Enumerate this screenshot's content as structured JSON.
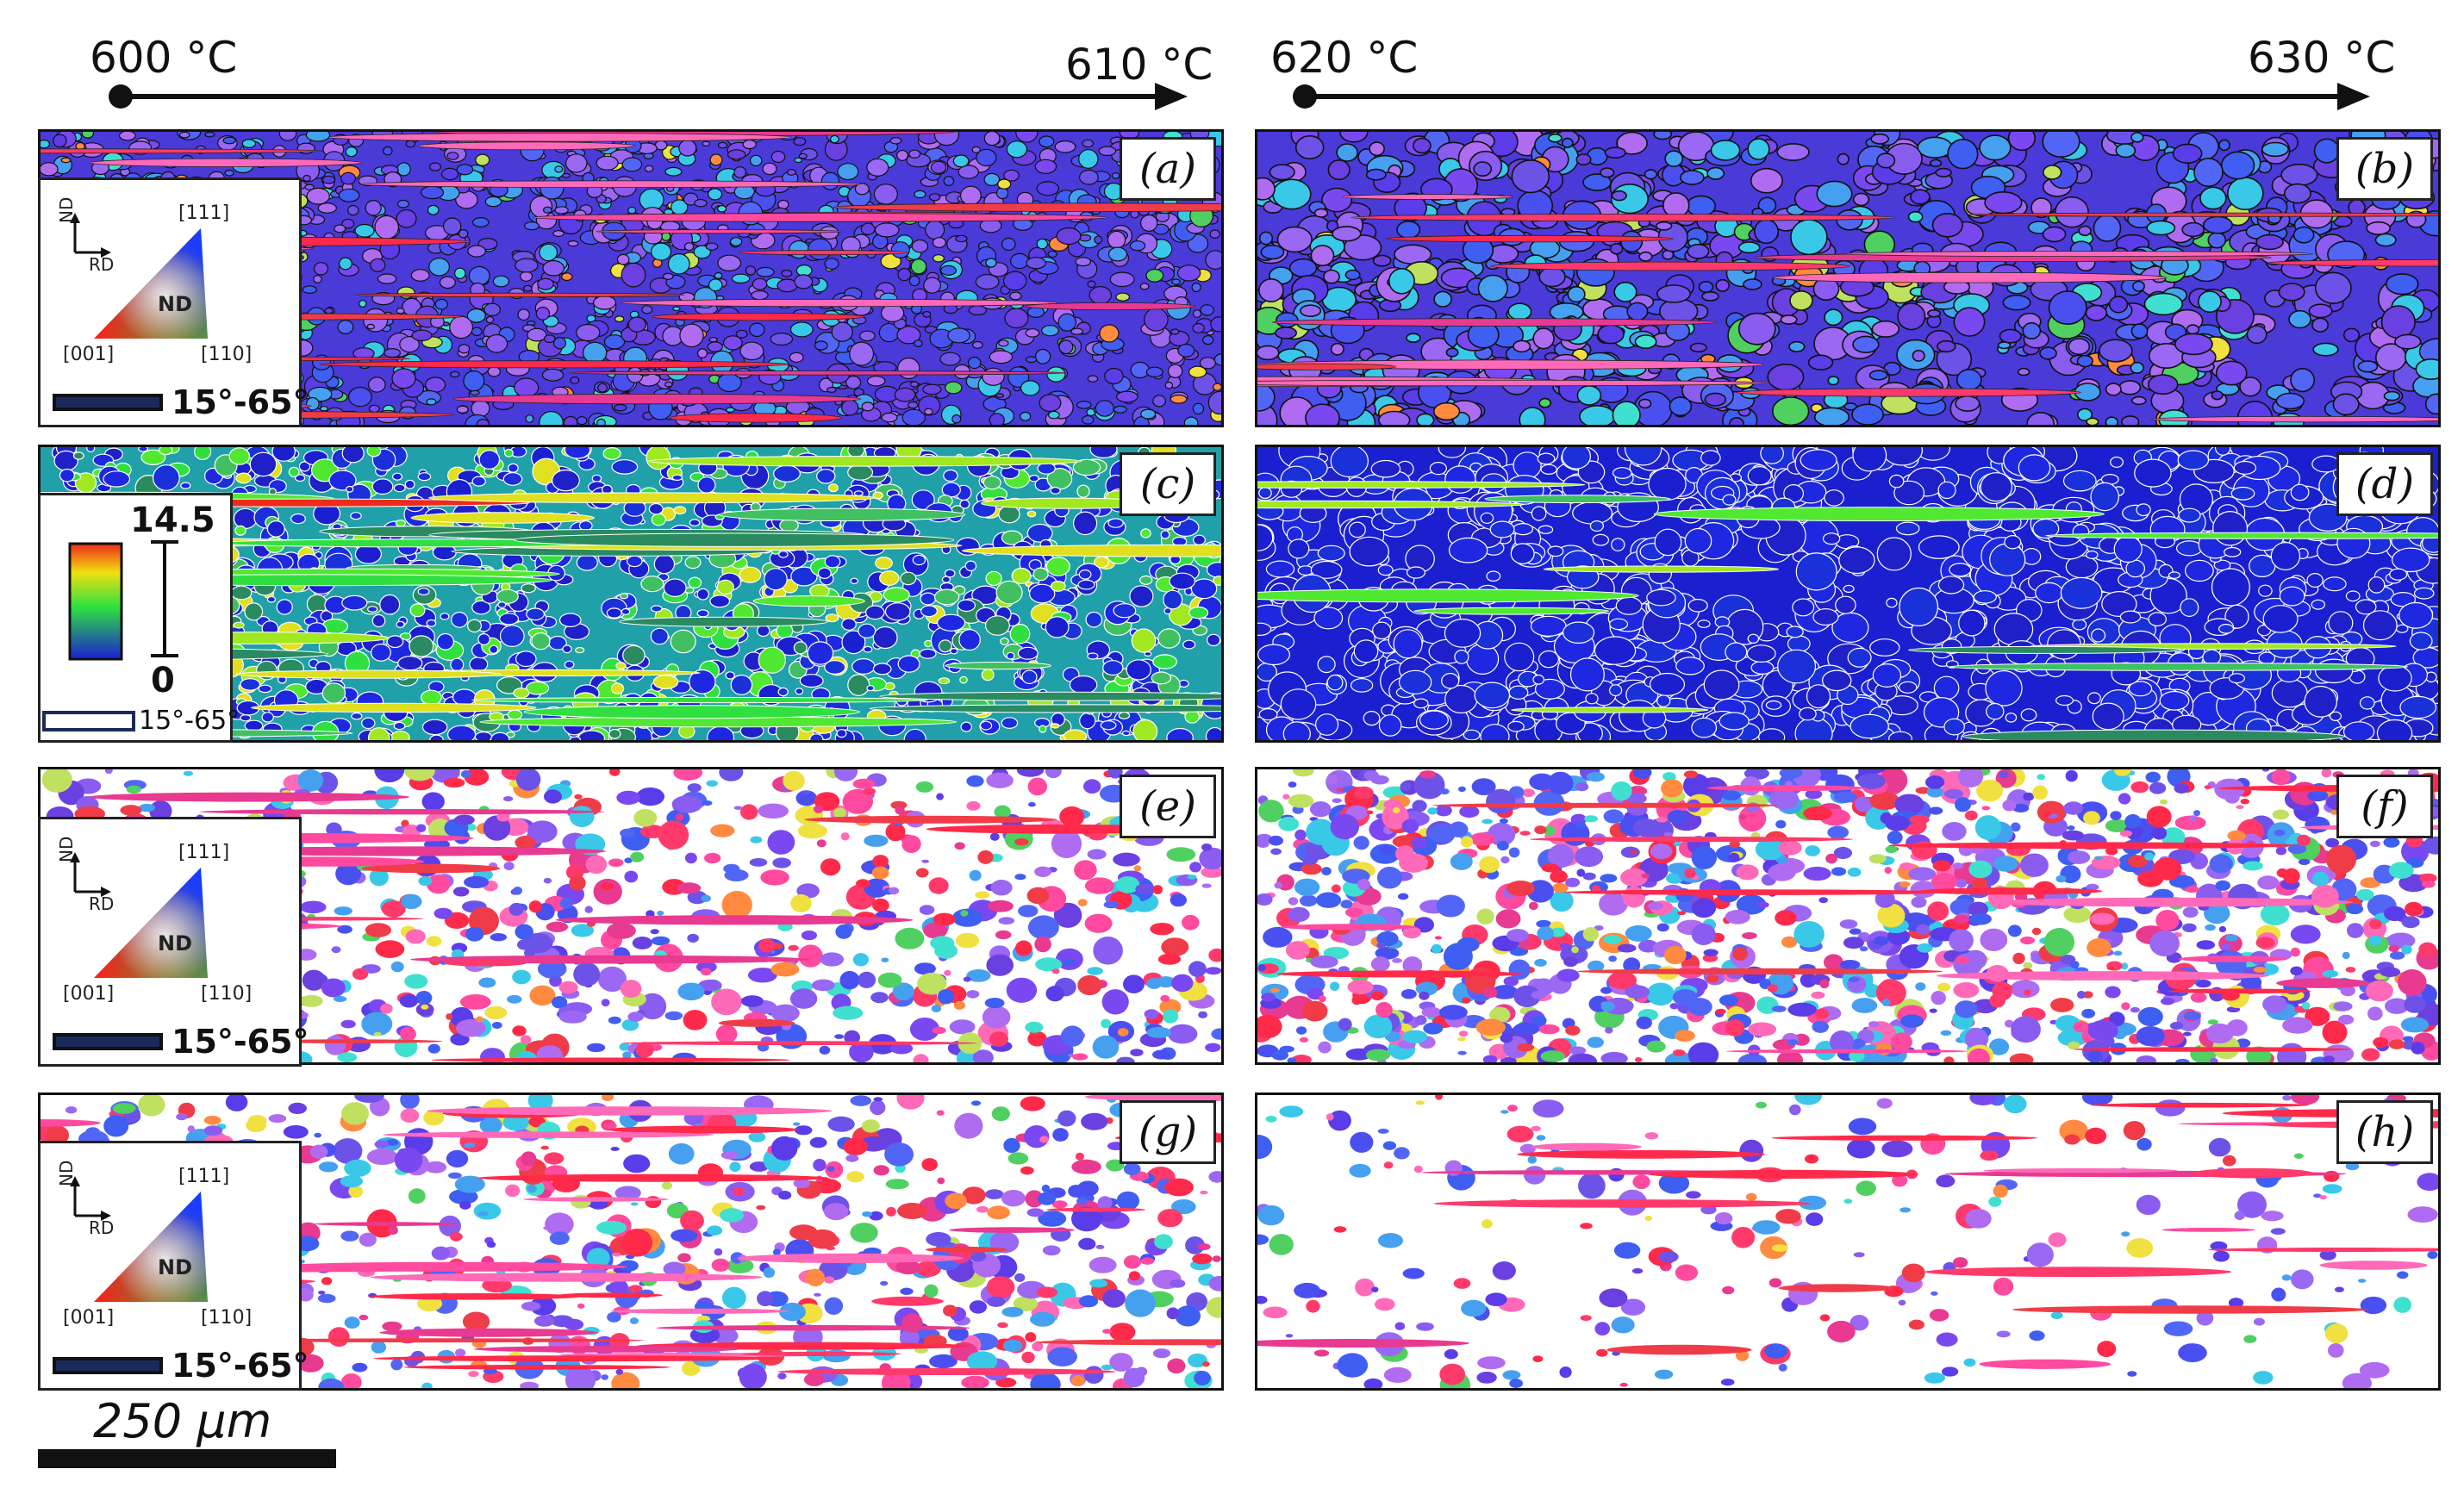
{
  "colors": {
    "axis": "#111111",
    "kam_low": "#1e20d2",
    "kam_mid": "#35e24a",
    "kam_high": "#ee2a1a",
    "boundary_white": "#ffffff",
    "boundary_black": "#111111"
  },
  "temperature_axes": [
    {
      "start": "600 °C",
      "end": "610 °C"
    },
    {
      "start": "620 °C",
      "end": "630 °C"
    }
  ],
  "panels": [
    {
      "tag": "(a)",
      "map": "ipf-orientation-map"
    },
    {
      "tag": "(b)",
      "map": "ipf-orientation-map"
    },
    {
      "tag": "(c)",
      "map": "kam-map"
    },
    {
      "tag": "(d)",
      "map": "kam-map"
    },
    {
      "tag": "(e)",
      "map": "ipf-orientation-map-partitioned"
    },
    {
      "tag": "(f)",
      "map": "ipf-orientation-map-partitioned"
    },
    {
      "tag": "(g)",
      "map": "ipf-orientation-map-partitioned"
    },
    {
      "tag": "(h)",
      "map": "ipf-orientation-map-partitioned"
    }
  ],
  "ipf_legend": {
    "axis_vertical": "ND",
    "axis_horizontal": "RD",
    "corner_top": "[111]",
    "corner_left": "[001]",
    "corner_right": "[110]",
    "center_label": "ND",
    "boundary_range": "15°-65°"
  },
  "kam_legend": {
    "max": "14.5",
    "min": "0",
    "boundary_range": "15°-65°"
  },
  "scalebar": {
    "label": "250 μm",
    "value": 250,
    "unit": "μm"
  }
}
